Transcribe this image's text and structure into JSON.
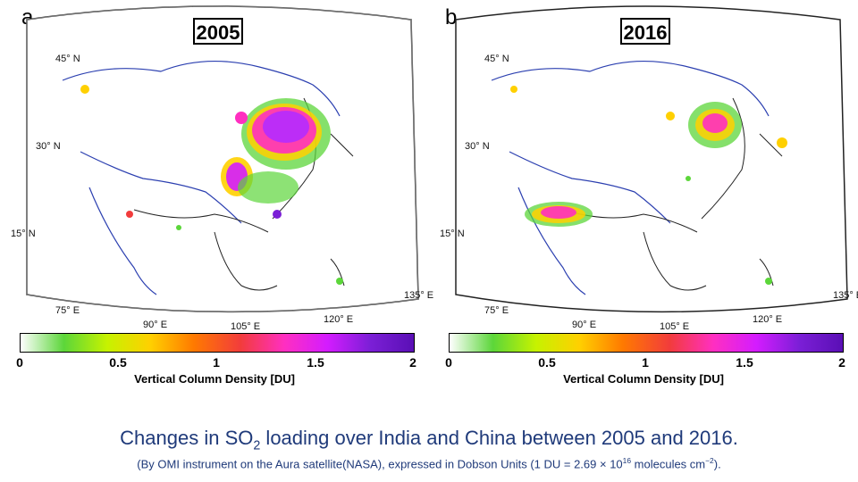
{
  "panels": [
    {
      "letter": "a",
      "year": "2005",
      "lat_labels": [
        "45° N",
        "30° N",
        "15° N"
      ],
      "lon_labels": [
        "75° E",
        "90° E",
        "105° E",
        "120° E",
        "135° E"
      ]
    },
    {
      "letter": "b",
      "year": "2016",
      "lat_labels": [
        "45° N",
        "30° N",
        "15° N"
      ],
      "lon_labels": [
        "75° E",
        "90° E",
        "105° E",
        "120° E",
        "135° E"
      ]
    }
  ],
  "colorbar": {
    "ticks": [
      "0",
      "0.5",
      "1",
      "1.5",
      "2"
    ],
    "label": "Vertical Column Density [DU]",
    "colors": [
      "#ffffff",
      "#5cd63a",
      "#c6f200",
      "#ffd000",
      "#ff7a00",
      "#f23c3c",
      "#ff2fc0",
      "#d41cff",
      "#7b1fd6",
      "#5a0fb5"
    ]
  },
  "caption": {
    "title_pre": "Changes in SO",
    "title_sub": "2",
    "title_post": " loading over India and China between 2005 and 2016.",
    "note_pre": "(By OMI instrument on the Aura satellite(NASA), expressed in Dobson Units (1 DU = 2.69 × 10",
    "note_sup1": "16",
    "note_mid": " molecules cm",
    "note_sup2": "−2",
    "note_post": ")."
  }
}
